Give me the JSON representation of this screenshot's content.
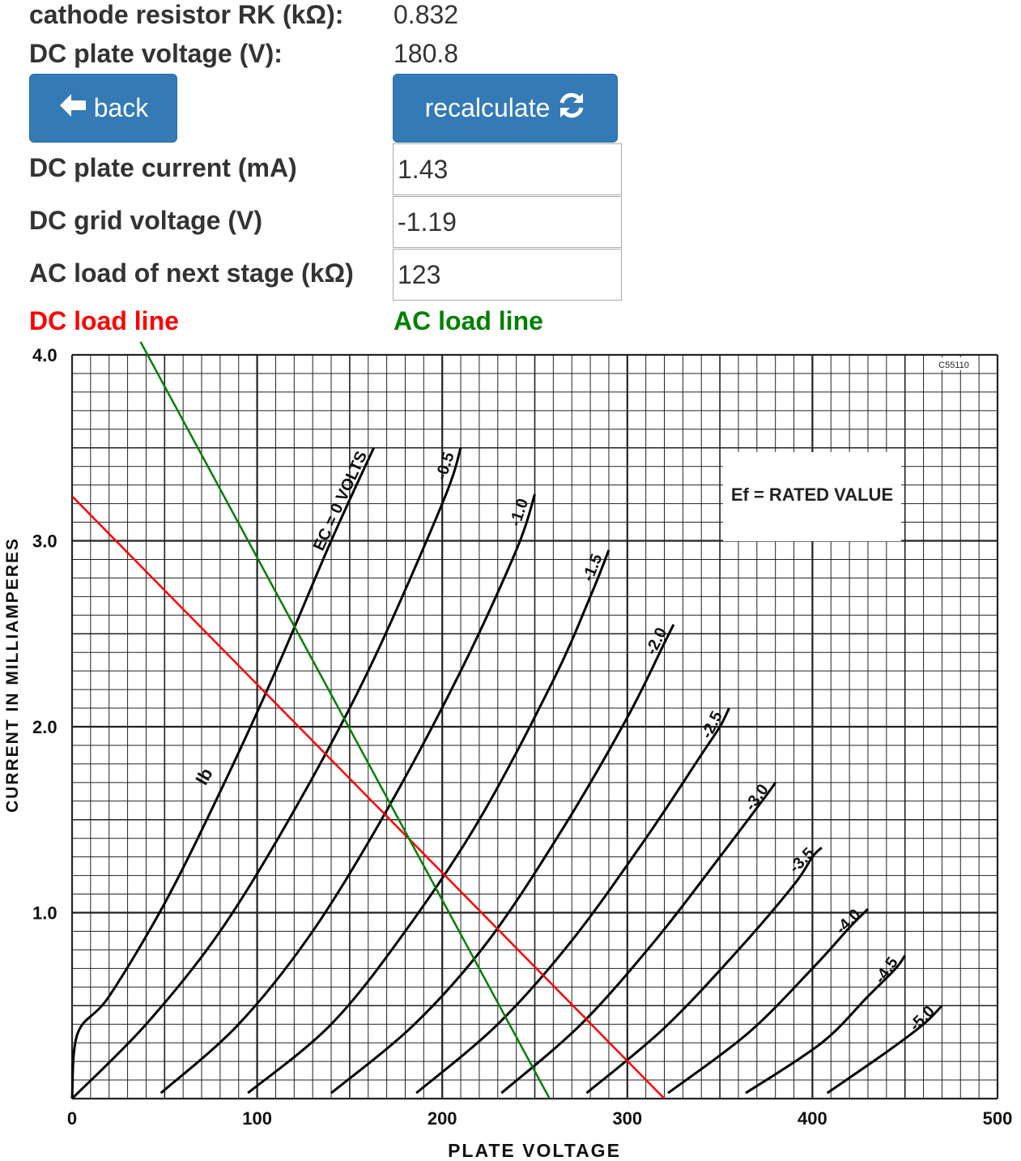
{
  "params": {
    "rk": {
      "label": "cathode resistor RK (kΩ):",
      "value": "0.832"
    },
    "vdc": {
      "label": "DC plate voltage (V):",
      "value": "180.8"
    }
  },
  "buttons": {
    "back": {
      "label": "back",
      "icon": "arrow-left-icon"
    },
    "recalc": {
      "label": "recalculate",
      "icon": "refresh-icon"
    }
  },
  "inputs": {
    "plate_current": {
      "label": "DC plate current (mA)",
      "value": "1.43"
    },
    "grid_voltage": {
      "label": "DC grid voltage (V)",
      "value": "-1.19"
    },
    "ac_load": {
      "label": "AC load of next stage (kΩ)",
      "value": "123"
    }
  },
  "legend": {
    "dc": {
      "label": "DC load line",
      "color": "#ff0000"
    },
    "ac": {
      "label": "AC load line",
      "color": "#008000"
    }
  },
  "chart_data": {
    "type": "line",
    "xlabel": "PLATE VOLTAGE",
    "ylabel": "CURRENT IN MILLIAMPERES",
    "xlim": [
      0,
      500
    ],
    "ylim": [
      0,
      4.0
    ],
    "x_ticks": [
      "0",
      "100",
      "200",
      "300",
      "400",
      "500"
    ],
    "y_ticks": [
      "1.0",
      "2.0",
      "3.0",
      "4.0"
    ],
    "grid": true,
    "annotation": "Ef = RATED VALUE",
    "corner_code": "C55110",
    "curve_labels": [
      "EC = 0 VOLTS",
      "-0.5",
      "-1.0",
      "-1.5",
      "-2.0",
      "-2.5",
      "-3.0",
      "-3.5",
      "-4.0",
      "-4.5",
      "-5.0"
    ],
    "ib_label": "Ib",
    "curves": [
      {
        "name": "0",
        "x": [
          0,
          3,
          20,
          50,
          80,
          110,
          140,
          163
        ],
        "y": [
          0,
          0.35,
          0.55,
          1.05,
          1.65,
          2.3,
          3.0,
          3.5
        ]
      },
      {
        "name": "-0.5",
        "x": [
          0,
          40,
          80,
          120,
          160,
          200,
          210
        ],
        "y": [
          0,
          0.4,
          0.9,
          1.55,
          2.3,
          3.2,
          3.5
        ]
      },
      {
        "name": "-1.0",
        "x": [
          48,
          90,
          130,
          170,
          210,
          240,
          250
        ],
        "y": [
          0.03,
          0.4,
          0.9,
          1.55,
          2.3,
          2.95,
          3.25
        ]
      },
      {
        "name": "-1.5",
        "x": [
          95,
          140,
          180,
          220,
          260,
          280,
          290
        ],
        "y": [
          0.03,
          0.4,
          0.9,
          1.5,
          2.25,
          2.7,
          2.95
        ]
      },
      {
        "name": "-2.0",
        "x": [
          140,
          185,
          225,
          265,
          300,
          320,
          325
        ],
        "y": [
          0.03,
          0.4,
          0.85,
          1.45,
          2.05,
          2.45,
          2.55
        ]
      },
      {
        "name": "-2.5",
        "x": [
          186,
          230,
          270,
          310,
          340,
          350,
          355
        ],
        "y": [
          0.03,
          0.4,
          0.85,
          1.4,
          1.85,
          2.0,
          2.1
        ]
      },
      {
        "name": "-3.0",
        "x": [
          232,
          275,
          315,
          350,
          375,
          380
        ],
        "y": [
          0.03,
          0.4,
          0.85,
          1.3,
          1.63,
          1.7
        ]
      },
      {
        "name": "-3.5",
        "x": [
          278,
          320,
          360,
          390,
          400,
          405
        ],
        "y": [
          0.03,
          0.38,
          0.8,
          1.15,
          1.3,
          1.35
        ]
      },
      {
        "name": "-4.0",
        "x": [
          322,
          365,
          400,
          420,
          430
        ],
        "y": [
          0.03,
          0.35,
          0.7,
          0.92,
          1.02
        ]
      },
      {
        "name": "-4.5",
        "x": [
          364,
          405,
          430,
          445,
          450
        ],
        "y": [
          0.03,
          0.3,
          0.55,
          0.7,
          0.77
        ]
      },
      {
        "name": "-5.0",
        "x": [
          408,
          440,
          460,
          470
        ],
        "y": [
          0.03,
          0.25,
          0.4,
          0.5
        ]
      }
    ],
    "load_lines": [
      {
        "name": "DC load line",
        "x": [
          0,
          320
        ],
        "y": [
          3.24,
          0
        ]
      },
      {
        "name": "AC load line",
        "x": [
          37,
          258
        ],
        "y": [
          4.07,
          0
        ]
      }
    ]
  }
}
